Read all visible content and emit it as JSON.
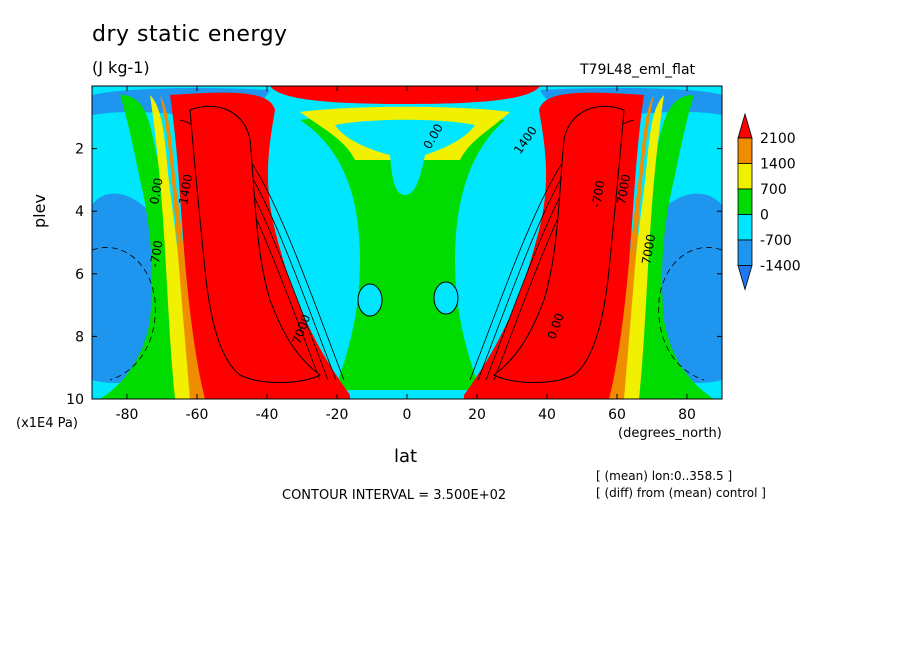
{
  "title": "dry static energy",
  "units": "(J kg-1)",
  "run_name": "T79L48_eml_flat",
  "contour_interval_text": "CONTOUR INTERVAL = 3.500E+02",
  "notes": [
    "[ (mean) lon:0..358.5 ]",
    "[ (diff) from (mean) control ]"
  ],
  "colors": {
    "lt_m1400": "#1e78f0",
    "m1400_m700": "#1e96f0",
    "m700_0": "#00e6ff",
    "0_700": "#00dc00",
    "700_1400": "#f0f000",
    "1400_2100": "#f08c00",
    "gt_2100": "#ff0000"
  },
  "chart_data": {
    "type": "heatmap",
    "title": "dry static energy",
    "xlabel": "lat",
    "xunits": "(degrees_north)",
    "ylabel": "plev",
    "yunits": "(x1E4 Pa)",
    "xlim": [
      -90,
      90
    ],
    "ylim": [
      10,
      0
    ],
    "x_ticks": [
      "-80",
      "-60",
      "-40",
      "-20",
      "0",
      "20",
      "40",
      "60",
      "80"
    ],
    "y_ticks": [
      "2",
      "4",
      "6",
      "8",
      "10"
    ],
    "colorbar_labels": [
      "2100",
      "1400",
      "700",
      "0",
      "-700",
      "-1400"
    ],
    "contour_interval": 350,
    "contour_labels": [
      "0.00",
      "-700",
      "7000",
      "0.00",
      "-700",
      "7000",
      "0.00",
      "1400",
      "7000",
      "1400"
    ]
  }
}
